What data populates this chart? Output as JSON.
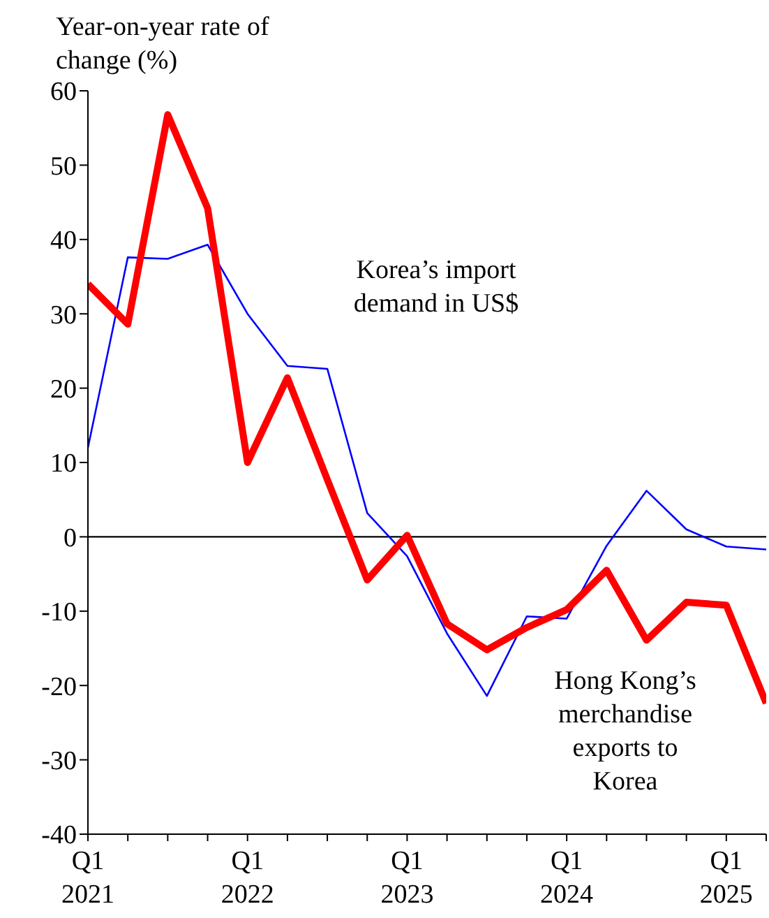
{
  "chart_data": {
    "type": "line",
    "ylabel": "Year-on-year rate of change (%)",
    "categories": [
      "Q1 2021",
      null,
      null,
      null,
      "Q1 2022",
      null,
      null,
      null,
      "Q1 2023",
      null,
      null,
      null,
      "Q1 2024",
      null,
      null,
      null,
      "Q1 2025",
      null
    ],
    "series": [
      {
        "name": "Korea’s import demand in US$",
        "color": "#0000ff",
        "values": [
          12,
          37.6,
          37.4,
          39.3,
          30,
          23,
          22.6,
          3.2,
          -2.6,
          -13,
          -21.4,
          -10.7,
          -11,
          -1.2,
          6.2,
          1,
          -1.3,
          -1.7
        ]
      },
      {
        "name": "Hong Kong’s merchandise exports to Korea",
        "color": "#ff0000",
        "values": [
          34,
          28.6,
          56.8,
          44.2,
          10,
          21.4,
          7.7,
          -5.8,
          0.2,
          -11.7,
          -15.2,
          -12.2,
          -9.8,
          -4.5,
          -13.9,
          -8.8,
          -9.2,
          -22.4
        ]
      }
    ],
    "ylim": [
      -40,
      60
    ],
    "yticks": [
      -40,
      -30,
      -20,
      -10,
      0,
      10,
      20,
      30,
      40,
      50,
      60
    ],
    "ref_lines": [
      {
        "axis": "y",
        "value": 0,
        "color": "#000000"
      }
    ],
    "grid": false,
    "marker": "none",
    "line_style": "solid"
  }
}
